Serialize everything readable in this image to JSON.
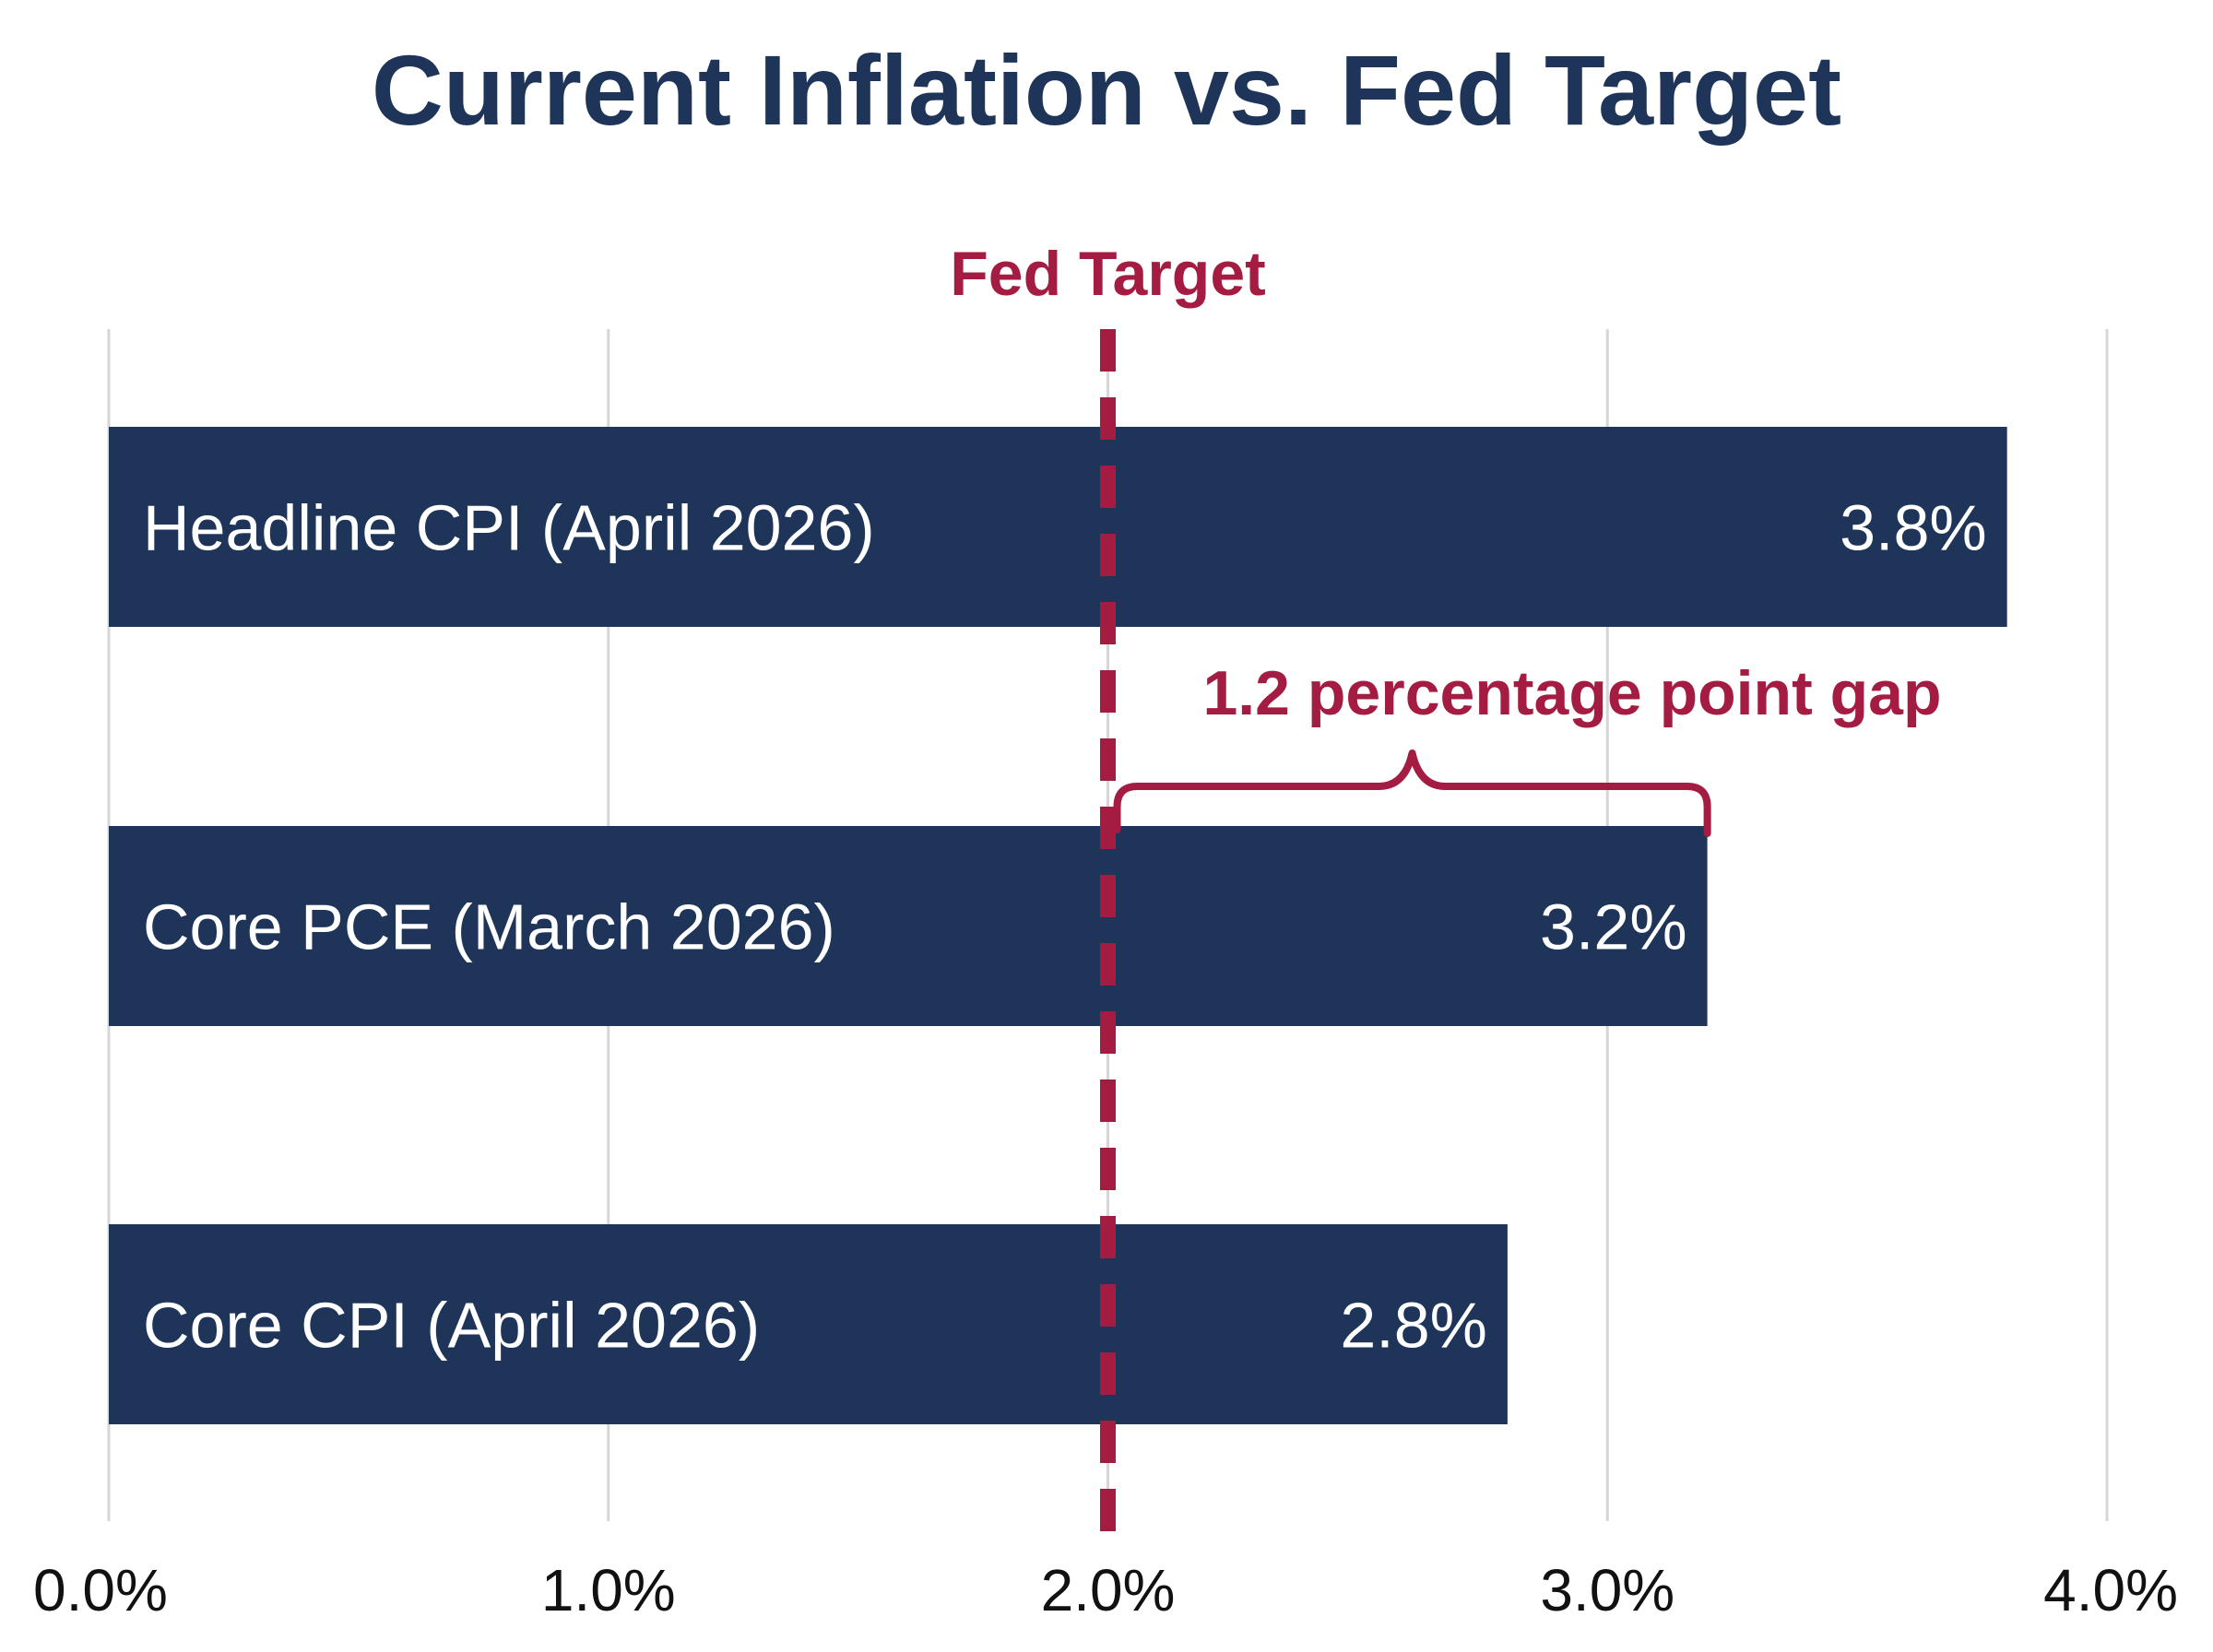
{
  "chart_data": {
    "type": "bar",
    "orientation": "horizontal",
    "title": "Current Inflation vs. Fed Target",
    "categories": [
      "Headline CPI (April 2026)",
      "Core PCE (March 2026)",
      "Core CPI (April 2026)"
    ],
    "values": [
      3.8,
      3.2,
      2.8
    ],
    "value_labels": [
      "3.8%",
      "3.2%",
      "2.8%"
    ],
    "xlim": [
      0,
      4
    ],
    "x_ticks": [
      0,
      1,
      2,
      3,
      4
    ],
    "x_tick_labels": [
      "0.0%",
      "1.0%",
      "2.0%",
      "3.0%",
      "4.0%"
    ],
    "grid": true,
    "reference_line": {
      "value": 2.0,
      "label": "Fed Target",
      "style": "dashed"
    },
    "annotation": {
      "text": "1.2 percentage point gap",
      "from": 2.0,
      "to": 3.2,
      "category": "Core PCE (March 2026)"
    },
    "colors": {
      "bar": "#1e3459",
      "title": "#1e3459",
      "accent": "#a51c43",
      "grid": "#d6d6d6",
      "bar_text": "#ffffff",
      "tick_text": "#111111"
    }
  }
}
